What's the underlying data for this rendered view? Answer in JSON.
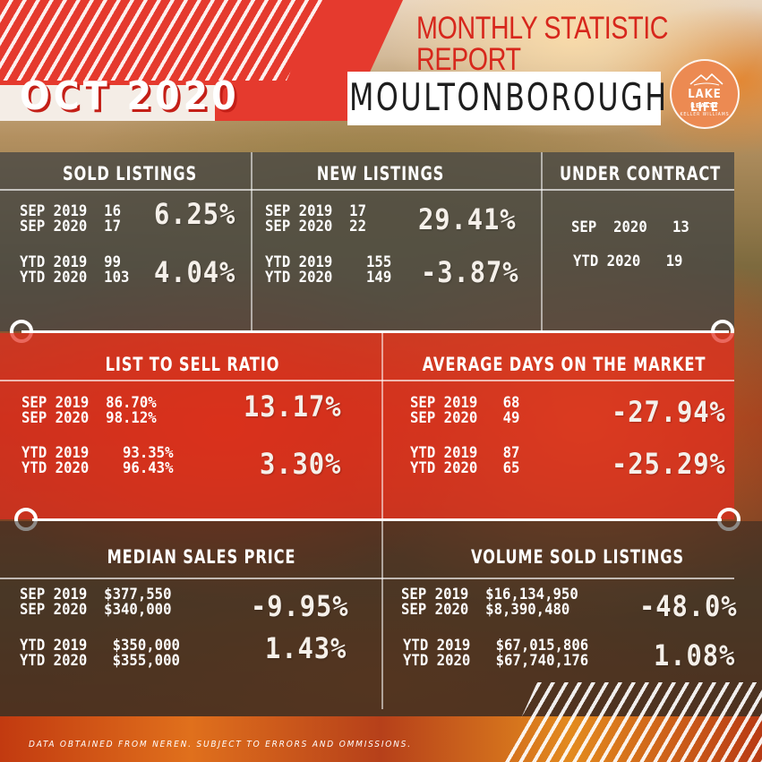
{
  "header": {
    "report_title": "MONTHLY STATISTIC REPORT",
    "period": "OCT 2020",
    "town": "MOULTONBOROUGH",
    "logo": {
      "line1": "LAKE LIFE",
      "line2": "REALTY",
      "line3": "KELLER WILLIAMS"
    }
  },
  "sold_listings": {
    "title": "SOLD LISTINGS",
    "rows_a": "SEP 2019  16\nSEP 2020  17",
    "pct_a": "6.25%",
    "rows_b": "YTD 2019  99\nYTD 2020  103",
    "pct_b": "4.04%"
  },
  "new_listings": {
    "title": "NEW LISTINGS",
    "rows_a": "SEP 2019  17\nSEP 2020  22",
    "pct_a": "29.41%",
    "rows_b": "YTD 2019    155\nYTD 2020    149",
    "pct_b": "-3.87%"
  },
  "under_contract": {
    "title": "UNDER CONTRACT",
    "row_a": "SEP  2020   13",
    "row_b": "YTD 2020   19"
  },
  "list_to_sell": {
    "title": "LIST TO SELL RATIO",
    "rows_a": "SEP 2019  86.70%\nSEP 2020  98.12%",
    "pct_a": "13.17%",
    "rows_b": "YTD 2019    93.35%\nYTD 2020    96.43%",
    "pct_b": "3.30%"
  },
  "avg_days": {
    "title": "AVERAGE DAYS ON THE MARKET",
    "rows_a": "SEP 2019   68\nSEP 2020   49",
    "pct_a": "-27.94%",
    "rows_b": "YTD 2019   87\nYTD 2020   65",
    "pct_b": "-25.29%"
  },
  "median_price": {
    "title": "MEDIAN SALES PRICE",
    "rows_a": "SEP 2019  $377,550\nSEP 2020  $340,000",
    "pct_a": "-9.95%",
    "rows_b": "YTD 2019   $350,000\nYTD 2020   $355,000",
    "pct_b": "1.43%"
  },
  "volume_sold": {
    "title": "VOLUME SOLD LISTINGS",
    "rows_a": "SEP 2019  $16,134,950\nSEP 2020  $8,390,480",
    "pct_a": "-48.0%",
    "rows_b": "YTD 2019   $67,015,806\nYTD 2020   $67,740,176",
    "pct_b": "1.08%"
  },
  "footer": {
    "disclaimer": "DATA OBTAINED FROM NEREN. SUBJECT TO ERRORS AND OMMISSIONS."
  },
  "colors": {
    "accent_red": "#e53a2e",
    "title_red": "#d7271c",
    "logo_orange": "#ec8a52"
  }
}
